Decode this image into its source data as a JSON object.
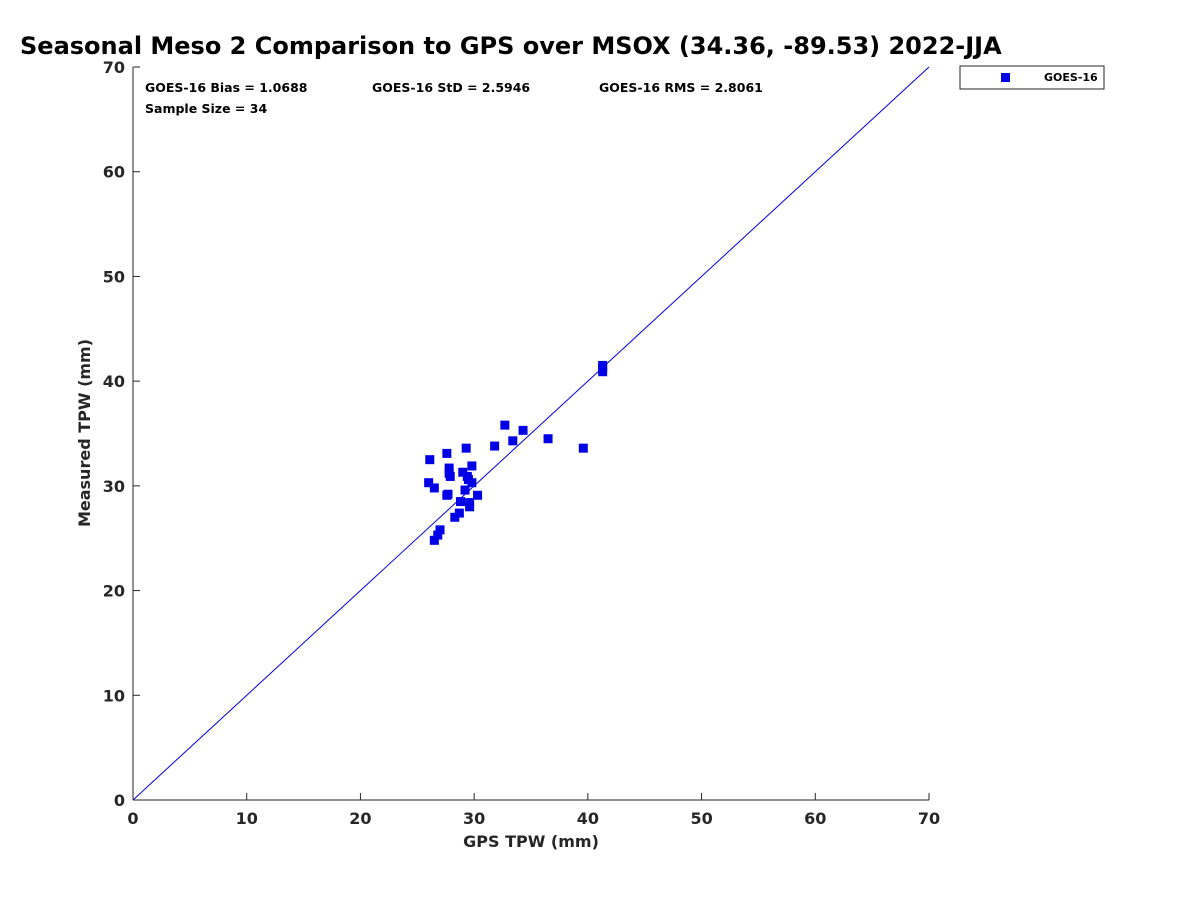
{
  "chart_data": {
    "type": "scatter",
    "title": "Seasonal Meso 2 Comparison to GPS over MSOX (34.36, -89.53) 2022-JJA",
    "xlabel": "GPS TPW (mm)",
    "ylabel": "Measured TPW (mm)",
    "xlim": [
      0,
      70
    ],
    "ylim": [
      0,
      70
    ],
    "xticks": [
      "0",
      "10",
      "20",
      "30",
      "40",
      "50",
      "60",
      "70"
    ],
    "yticks": [
      "0",
      "10",
      "20",
      "30",
      "40",
      "50",
      "60",
      "70"
    ],
    "grid": false,
    "legend_position": "outside-top-right",
    "reference_line": {
      "from": [
        0,
        0
      ],
      "to": [
        70,
        70
      ],
      "color": "#0000e6"
    },
    "annotations": {
      "bias": "GOES-16 Bias = 1.0688",
      "std": "GOES-16 StD = 2.5946",
      "rms": "GOES-16 RMS = 2.8061",
      "sample": "Sample Size = 34"
    },
    "series": [
      {
        "name": "GOES-16",
        "color": "#0000e6",
        "marker": "square",
        "points": [
          [
            26.5,
            24.8
          ],
          [
            26.8,
            25.3
          ],
          [
            27.0,
            25.8
          ],
          [
            26.0,
            30.3
          ],
          [
            26.5,
            29.8
          ],
          [
            26.1,
            32.5
          ],
          [
            27.6,
            33.1
          ],
          [
            27.6,
            29.1
          ],
          [
            27.8,
            31.7
          ],
          [
            27.8,
            31.2
          ],
          [
            27.9,
            30.9
          ],
          [
            28.3,
            27.0
          ],
          [
            28.7,
            27.4
          ],
          [
            28.8,
            28.5
          ],
          [
            29.0,
            31.3
          ],
          [
            29.2,
            29.6
          ],
          [
            29.3,
            33.6
          ],
          [
            29.4,
            30.9
          ],
          [
            29.6,
            28.0
          ],
          [
            29.6,
            28.4
          ],
          [
            29.8,
            30.3
          ],
          [
            29.8,
            31.9
          ],
          [
            30.3,
            29.1
          ],
          [
            31.8,
            33.8
          ],
          [
            32.7,
            35.8
          ],
          [
            33.4,
            34.3
          ],
          [
            34.3,
            35.3
          ],
          [
            36.5,
            34.5
          ],
          [
            39.6,
            33.6
          ],
          [
            41.3,
            41.5
          ],
          [
            41.3,
            41.2
          ],
          [
            41.3,
            40.9
          ],
          [
            29.5,
            30.6
          ],
          [
            27.7,
            29.2
          ]
        ]
      }
    ]
  }
}
